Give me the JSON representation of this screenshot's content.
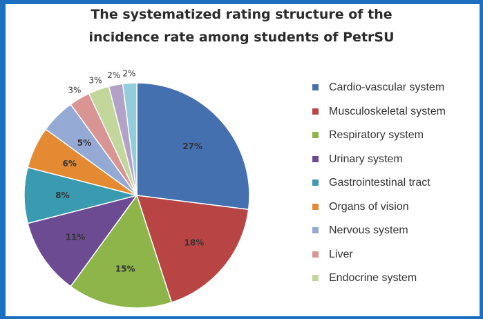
{
  "title_line1": "The systematized rating structure of the",
  "title_line2": "incidence rate among students of PetrSU",
  "chart_data": {
    "type": "pie",
    "title": "The systematized rating structure of the incidence rate among students of PetrSU",
    "legend_position": "right",
    "slices": [
      {
        "label": "Cardio-vascular system",
        "value": 27,
        "text": "27%",
        "color": "#4470b0"
      },
      {
        "label": "Musculoskeletal system",
        "value": 18,
        "text": "18%",
        "color": "#b84544"
      },
      {
        "label": "Respiratory system",
        "value": 15,
        "text": "15%",
        "color": "#8db54a"
      },
      {
        "label": "Urinary system",
        "value": 11,
        "text": "11%",
        "color": "#6c4b93"
      },
      {
        "label": "Gastrointestinal tract",
        "value": 8,
        "text": "8%",
        "color": "#3a9ab0"
      },
      {
        "label": "Organs of vision",
        "value": 6,
        "text": "6%",
        "color": "#e38a33"
      },
      {
        "label": "Nervous system",
        "value": 5,
        "text": "5%",
        "color": "#94aad5"
      },
      {
        "label": "Liver",
        "value": 3,
        "text": "3%",
        "color": "#d99594"
      },
      {
        "label": "Endocrine system",
        "value": 3,
        "text": "3%",
        "color": "#c3d69b"
      },
      {
        "label": "",
        "value": 2,
        "text": "2%",
        "color": "#b3a2c7"
      },
      {
        "label": "",
        "value": 2,
        "text": "2%",
        "color": "#92cddc"
      }
    ]
  }
}
